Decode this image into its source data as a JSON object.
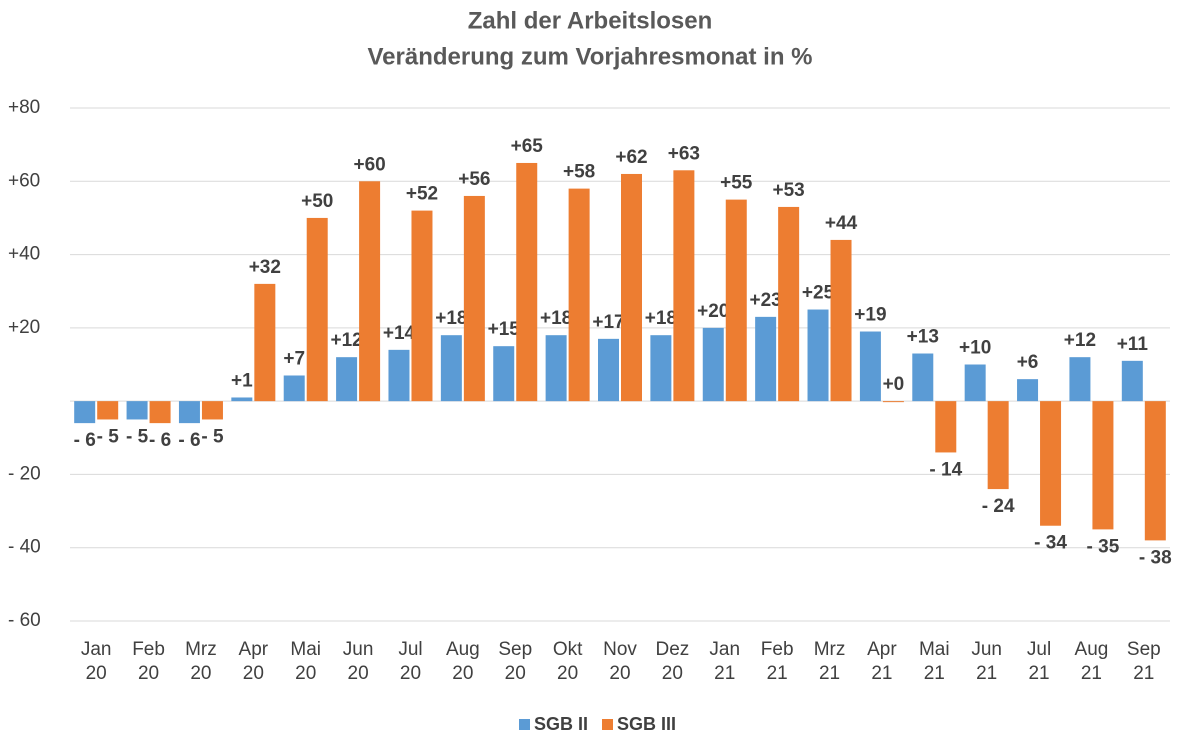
{
  "chart_data": {
    "type": "bar",
    "title": "Zahl der Arbeitslosen",
    "subtitle": "Veränderung zum Vorjahresmonat in %",
    "categories": [
      "Jan 20",
      "Feb 20",
      "Mrz 20",
      "Apr 20",
      "Mai 20",
      "Jun 20",
      "Jul 20",
      "Aug 20",
      "Sep 20",
      "Okt 20",
      "Nov 20",
      "Dez 20",
      "Jan 21",
      "Feb 21",
      "Mrz 21",
      "Apr 21",
      "Mai 21",
      "Jun 21",
      "Jul 21",
      "Aug 21",
      "Sep 21"
    ],
    "series": [
      {
        "name": "SGB II",
        "color": "#5b9bd5",
        "values": [
          -6,
          -5,
          -6,
          1,
          7,
          12,
          14,
          18,
          15,
          18,
          17,
          18,
          20,
          23,
          25,
          19,
          13,
          10,
          6,
          12,
          11
        ],
        "value_labels": [
          "- 6",
          "- 5",
          "- 6",
          "+1",
          "+7",
          "+12",
          "+14",
          "+18",
          "+15",
          "+18",
          "+17",
          "+18",
          "+20",
          "+23",
          "+25",
          "+19",
          "+13",
          "+10",
          "+6",
          "+12",
          "+11"
        ]
      },
      {
        "name": "SGB III",
        "color": "#ed7d31",
        "values": [
          -5,
          -6,
          -5,
          32,
          50,
          60,
          52,
          56,
          65,
          58,
          62,
          63,
          55,
          53,
          44,
          0,
          -14,
          -24,
          -34,
          -35,
          -38
        ],
        "value_labels": [
          "- 5",
          "- 6",
          "- 5",
          "+32",
          "+50",
          "+60",
          "+52",
          "+56",
          "+65",
          "+58",
          "+62",
          "+63",
          "+55",
          "+53",
          "+44",
          "+0",
          "- 14",
          "- 24",
          "- 34",
          "- 35",
          "- 38"
        ]
      }
    ],
    "ylim": [
      -60,
      80
    ],
    "yticks": [
      {
        "value": -60,
        "label": "- 60"
      },
      {
        "value": -40,
        "label": "- 40"
      },
      {
        "value": -20,
        "label": "- 20"
      },
      {
        "value": 20,
        "label": "+20"
      },
      {
        "value": 40,
        "label": "+40"
      },
      {
        "value": 60,
        "label": "+60"
      },
      {
        "value": 80,
        "label": "+80"
      }
    ],
    "grid": true,
    "legend": "bottom"
  }
}
